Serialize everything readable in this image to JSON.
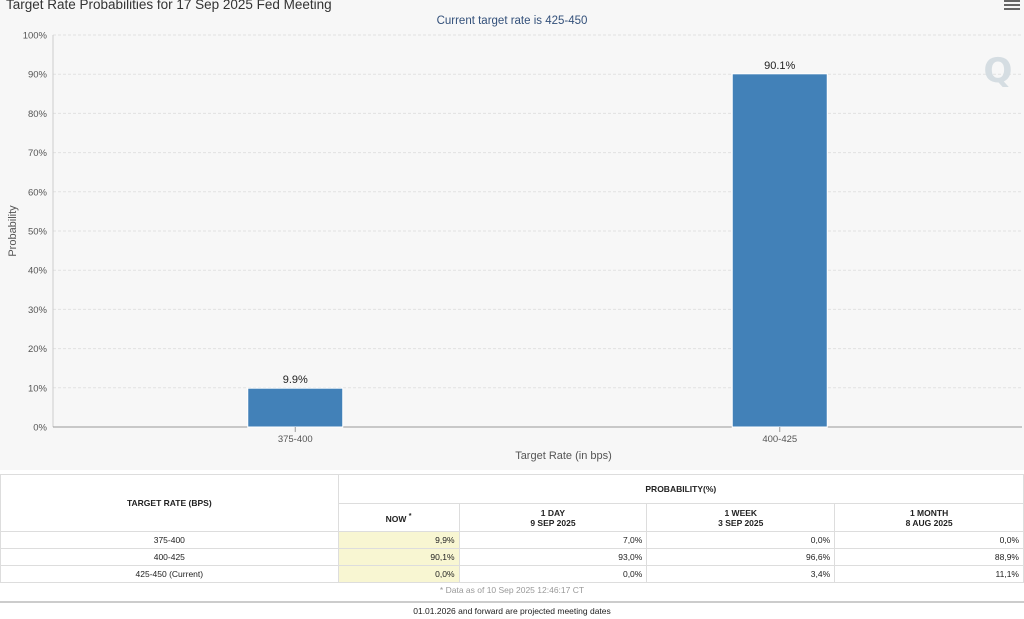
{
  "chart_data": {
    "type": "bar",
    "title": "Target Rate Probabilities for 17 Sep 2025 Fed Meeting",
    "subtitle": "Current target rate is 425-450",
    "categories": [
      "375-400",
      "400-425"
    ],
    "values": [
      9.9,
      90.1
    ],
    "data_labels": [
      "9.9%",
      "90.1%"
    ],
    "xlabel": "Target Rate (in bps)",
    "ylabel": "Probability",
    "ylim": [
      0,
      100
    ],
    "yticks": [
      "0%",
      "10%",
      "20%",
      "30%",
      "40%",
      "50%",
      "60%",
      "70%",
      "80%",
      "90%",
      "100%"
    ],
    "bar_color": "#4281b8",
    "grid": true,
    "legend": "none"
  },
  "watermark": "Q",
  "menu_icon": "hamburger-menu-icon",
  "table": {
    "target_rate_header": "TARGET RATE (BPS)",
    "probability_header": "PROBABILITY(%)",
    "columns": [
      {
        "line1": "NOW",
        "sup": "*",
        "line2": ""
      },
      {
        "line1": "1 DAY",
        "line2": "9 SEP 2025"
      },
      {
        "line1": "1 WEEK",
        "line2": "3 SEP 2025"
      },
      {
        "line1": "1 MONTH",
        "line2": "8 AUG 2025"
      }
    ],
    "rows": [
      {
        "rate": "375-400",
        "values": [
          "9,9%",
          "7,0%",
          "0,0%",
          "0,0%"
        ]
      },
      {
        "rate": "400-425",
        "values": [
          "90,1%",
          "93,0%",
          "96,6%",
          "88,9%"
        ]
      },
      {
        "rate": "425-450 (Current)",
        "values": [
          "0,0%",
          "0,0%",
          "3,4%",
          "11,1%"
        ]
      }
    ],
    "highlight_color": "#f8f6d2"
  },
  "footnote": "* Data as of 10 Sep 2025 12:46:17 CT",
  "projected_note": "01.01.2026 and forward are projected meeting dates"
}
